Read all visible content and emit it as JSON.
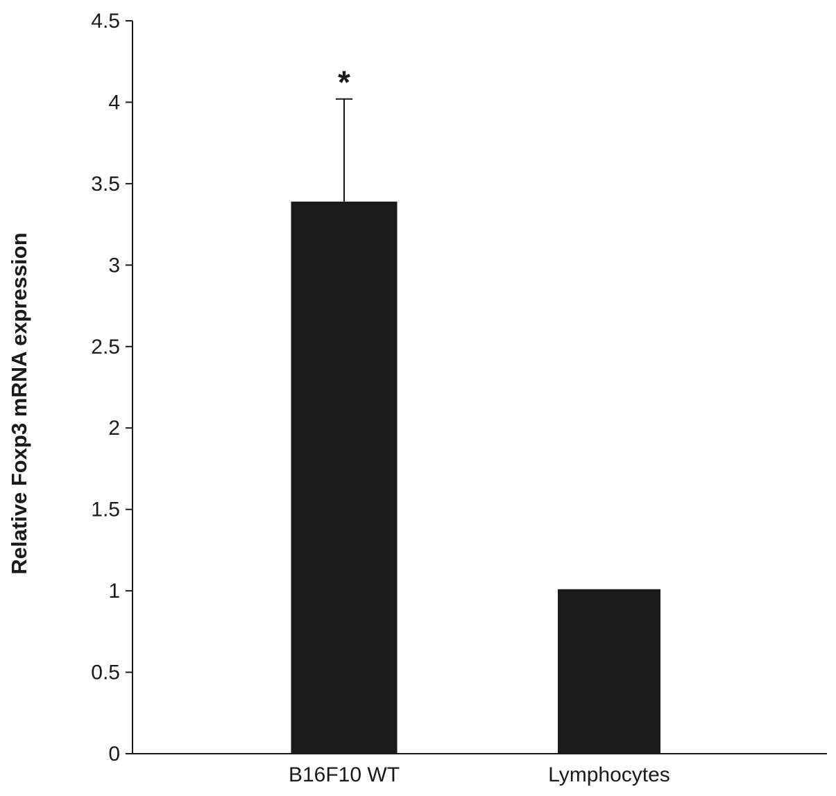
{
  "chart_data": {
    "type": "bar",
    "title": "",
    "xlabel": "",
    "ylabel": "Relative Foxp3 mRNA expression",
    "categories": [
      "B16F10 WT",
      "Lymphocytes"
    ],
    "values": [
      3.39,
      1.01
    ],
    "error_bars": [
      0.63,
      null
    ],
    "annotations": [
      "*",
      null
    ],
    "ylim": [
      0,
      4.5
    ],
    "yticks": [
      0,
      0.5,
      1,
      1.5,
      2,
      2.5,
      3,
      3.5,
      4,
      4.5
    ],
    "ytick_labels": [
      "0",
      "0.5",
      "1",
      "1.5",
      "2",
      "2.5",
      "3",
      "3.5",
      "4",
      "4.5"
    ],
    "bar_color": "#1a1a1a",
    "grid": false,
    "legend": "none"
  }
}
